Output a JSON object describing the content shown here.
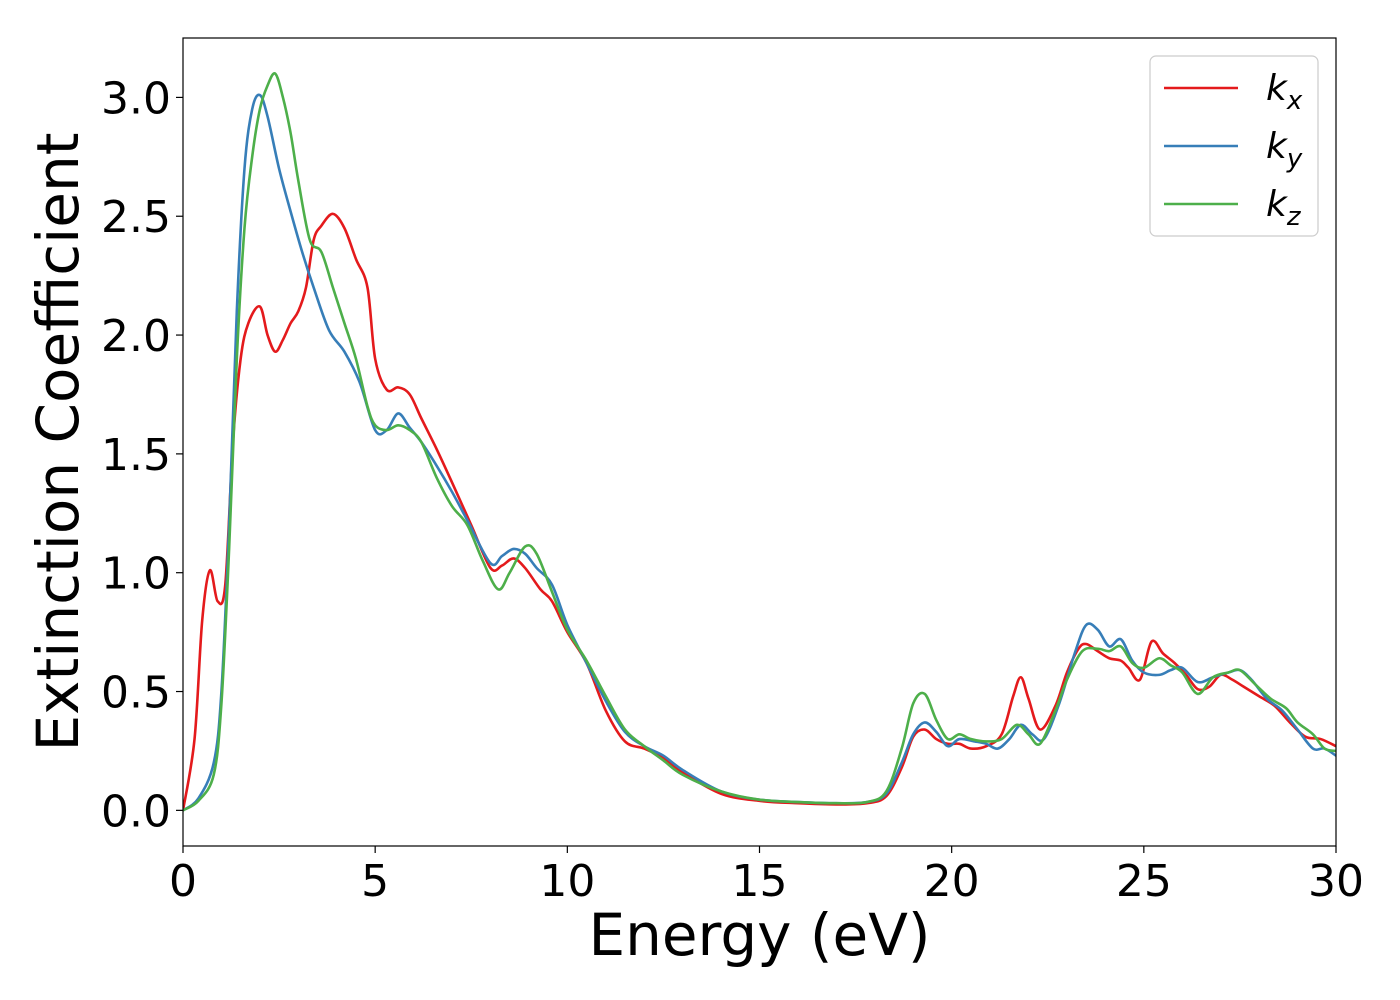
{
  "chart_data": {
    "type": "line",
    "title": "",
    "xlabel": "Energy (eV)",
    "ylabel": "Extinction Coefficient",
    "xlim": [
      0,
      30
    ],
    "ylim": [
      -0.15,
      3.25
    ],
    "xticks": [
      0,
      5,
      10,
      15,
      20,
      25,
      30
    ],
    "xtick_labels": [
      "0",
      "5",
      "10",
      "15",
      "20",
      "25",
      "30"
    ],
    "yticks": [
      0.0,
      0.5,
      1.0,
      1.5,
      2.0,
      2.5,
      3.0
    ],
    "ytick_labels": [
      "0.0",
      "0.5",
      "1.0",
      "1.5",
      "2.0",
      "2.5",
      "3.0"
    ],
    "grid": false,
    "legend_position": "top-right",
    "series": [
      {
        "name": "k_x",
        "label_main": "k",
        "label_sub": "x",
        "color": "#e41a1c",
        "x": [
          0,
          0.3,
          0.5,
          0.7,
          0.9,
          1.1,
          1.3,
          1.5,
          1.7,
          2.0,
          2.2,
          2.4,
          2.6,
          2.8,
          3.0,
          3.2,
          3.4,
          3.6,
          3.9,
          4.2,
          4.5,
          4.8,
          5.0,
          5.3,
          5.6,
          5.9,
          6.2,
          6.6,
          7.0,
          7.5,
          8.0,
          8.3,
          8.6,
          8.9,
          9.3,
          9.6,
          10.0,
          10.5,
          11.0,
          11.5,
          12.0,
          12.5,
          13.0,
          14.0,
          15.0,
          16.0,
          17.0,
          17.8,
          18.3,
          18.7,
          19.0,
          19.3,
          19.6,
          19.9,
          20.2,
          20.5,
          20.9,
          21.3,
          21.6,
          21.8,
          22.0,
          22.3,
          22.7,
          23.0,
          23.3,
          23.5,
          23.8,
          24.1,
          24.4,
          24.6,
          24.9,
          25.2,
          25.5,
          25.8,
          26.1,
          26.4,
          26.7,
          27.0,
          27.3,
          27.6,
          28.0,
          28.4,
          28.8,
          29.2,
          29.6,
          30.0
        ],
        "y": [
          0.0,
          0.3,
          0.8,
          1.01,
          0.88,
          0.95,
          1.55,
          1.9,
          2.05,
          2.12,
          2.0,
          1.93,
          1.98,
          2.05,
          2.1,
          2.2,
          2.4,
          2.46,
          2.51,
          2.45,
          2.32,
          2.2,
          1.9,
          1.77,
          1.78,
          1.75,
          1.65,
          1.52,
          1.38,
          1.2,
          1.02,
          1.03,
          1.06,
          1.02,
          0.93,
          0.88,
          0.75,
          0.62,
          0.42,
          0.29,
          0.26,
          0.22,
          0.16,
          0.07,
          0.04,
          0.03,
          0.025,
          0.03,
          0.06,
          0.18,
          0.31,
          0.34,
          0.3,
          0.28,
          0.28,
          0.26,
          0.27,
          0.32,
          0.48,
          0.56,
          0.47,
          0.34,
          0.44,
          0.58,
          0.68,
          0.7,
          0.67,
          0.64,
          0.63,
          0.6,
          0.55,
          0.71,
          0.66,
          0.62,
          0.57,
          0.51,
          0.52,
          0.57,
          0.55,
          0.52,
          0.48,
          0.44,
          0.37,
          0.31,
          0.3,
          0.27
        ]
      },
      {
        "name": "k_y",
        "label_main": "k",
        "label_sub": "y",
        "color": "#377eb8",
        "x": [
          0,
          0.4,
          0.8,
          1.0,
          1.2,
          1.4,
          1.6,
          1.8,
          2.0,
          2.2,
          2.5,
          2.8,
          3.1,
          3.4,
          3.8,
          4.2,
          4.6,
          5.0,
          5.3,
          5.6,
          5.9,
          6.2,
          6.6,
          7.0,
          7.4,
          8.0,
          8.3,
          8.6,
          8.9,
          9.2,
          9.6,
          10.0,
          10.5,
          11.0,
          11.5,
          12.0,
          12.5,
          13.0,
          14.0,
          15.0,
          16.0,
          17.0,
          17.8,
          18.3,
          18.7,
          19.0,
          19.3,
          19.6,
          19.9,
          20.2,
          20.6,
          20.9,
          21.2,
          21.5,
          21.8,
          22.1,
          22.4,
          22.8,
          23.2,
          23.5,
          23.8,
          24.1,
          24.4,
          24.7,
          25.0,
          25.4,
          25.7,
          26.0,
          26.4,
          26.8,
          27.2,
          27.5,
          27.8,
          28.2,
          28.6,
          29.0,
          29.4,
          29.7,
          30.0
        ],
        "y": [
          0.0,
          0.05,
          0.2,
          0.5,
          1.2,
          2.1,
          2.7,
          2.95,
          3.01,
          2.92,
          2.7,
          2.52,
          2.35,
          2.2,
          2.02,
          1.93,
          1.8,
          1.6,
          1.6,
          1.67,
          1.61,
          1.55,
          1.45,
          1.34,
          1.22,
          1.04,
          1.07,
          1.1,
          1.08,
          1.02,
          0.95,
          0.78,
          0.62,
          0.46,
          0.33,
          0.27,
          0.23,
          0.17,
          0.08,
          0.045,
          0.035,
          0.03,
          0.035,
          0.07,
          0.2,
          0.32,
          0.37,
          0.33,
          0.27,
          0.3,
          0.29,
          0.28,
          0.26,
          0.3,
          0.36,
          0.32,
          0.3,
          0.45,
          0.66,
          0.78,
          0.76,
          0.69,
          0.72,
          0.63,
          0.58,
          0.57,
          0.59,
          0.6,
          0.54,
          0.56,
          0.58,
          0.59,
          0.55,
          0.47,
          0.42,
          0.34,
          0.26,
          0.26,
          0.23
        ]
      },
      {
        "name": "k_z",
        "label_main": "k",
        "label_sub": "z",
        "color": "#4daf4a",
        "x": [
          0,
          0.4,
          0.8,
          1.0,
          1.2,
          1.4,
          1.6,
          1.8,
          2.0,
          2.2,
          2.4,
          2.6,
          2.8,
          3.0,
          3.3,
          3.6,
          3.9,
          4.2,
          4.5,
          4.8,
          5.0,
          5.3,
          5.6,
          5.9,
          6.2,
          6.6,
          7.0,
          7.4,
          7.8,
          8.2,
          8.5,
          8.9,
          9.2,
          9.6,
          10.0,
          10.5,
          11.0,
          11.5,
          12.0,
          12.5,
          13.0,
          14.0,
          15.0,
          16.0,
          17.0,
          17.8,
          18.3,
          18.7,
          19.0,
          19.3,
          19.6,
          19.9,
          20.2,
          20.5,
          20.9,
          21.3,
          21.7,
          22.0,
          22.3,
          22.7,
          23.0,
          23.4,
          23.8,
          24.1,
          24.4,
          24.7,
          25.0,
          25.4,
          25.7,
          26.0,
          26.4,
          26.8,
          27.2,
          27.5,
          27.9,
          28.3,
          28.7,
          29.0,
          29.4,
          29.7,
          30.0
        ],
        "y": [
          0.0,
          0.04,
          0.15,
          0.45,
          1.1,
          1.9,
          2.45,
          2.75,
          2.95,
          3.05,
          3.1,
          3.0,
          2.85,
          2.65,
          2.4,
          2.35,
          2.2,
          2.05,
          1.9,
          1.7,
          1.62,
          1.6,
          1.62,
          1.6,
          1.55,
          1.4,
          1.28,
          1.2,
          1.05,
          0.93,
          1.0,
          1.11,
          1.08,
          0.92,
          0.76,
          0.63,
          0.48,
          0.34,
          0.27,
          0.21,
          0.15,
          0.08,
          0.045,
          0.035,
          0.03,
          0.035,
          0.08,
          0.26,
          0.45,
          0.49,
          0.38,
          0.3,
          0.32,
          0.3,
          0.29,
          0.3,
          0.36,
          0.32,
          0.28,
          0.42,
          0.55,
          0.67,
          0.68,
          0.67,
          0.69,
          0.62,
          0.6,
          0.64,
          0.61,
          0.58,
          0.49,
          0.56,
          0.58,
          0.59,
          0.53,
          0.47,
          0.43,
          0.37,
          0.32,
          0.26,
          0.25
        ]
      }
    ]
  }
}
